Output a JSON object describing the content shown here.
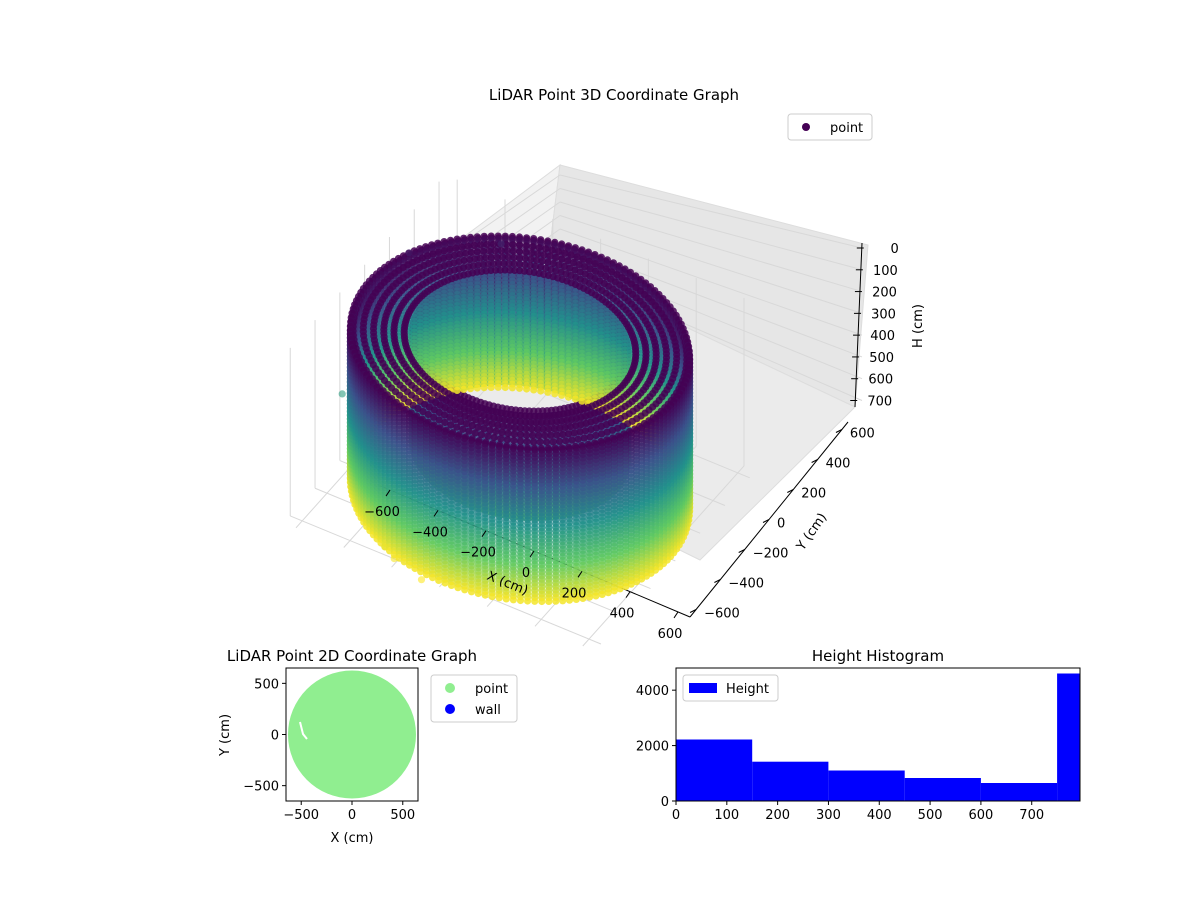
{
  "chart_data": [
    {
      "type": "scatter",
      "projection": "3d",
      "title": "LiDAR Point 3D Coordinate Graph",
      "xlabel": "X (cm)",
      "ylabel": "Y (cm)",
      "zlabel": "H (cm)",
      "xlim": [
        -650,
        650
      ],
      "ylim": [
        -650,
        650
      ],
      "zlim": [
        750,
        0
      ],
      "z_inverted": true,
      "xticks": [
        -600,
        -400,
        -200,
        0,
        200,
        400,
        600
      ],
      "yticks": [
        -600,
        -400,
        -200,
        0,
        200,
        400,
        600
      ],
      "zticks": [
        0,
        100,
        200,
        300,
        400,
        500,
        600,
        700
      ],
      "legend": {
        "placement": "top-right",
        "entries": [
          "point"
        ]
      },
      "colormap": "viridis",
      "series": [
        {
          "name": "point",
          "shape": "cylindrical shell of points",
          "outer_radius": 630,
          "inner_radius": 400,
          "height_range": [
            0,
            750
          ],
          "stray_points": [
            {
              "x": -620,
              "y": 300,
              "h": 60
            },
            {
              "x": -380,
              "y": 580,
              "h": 90
            },
            {
              "x": -640,
              "y": -200,
              "h": 420
            },
            {
              "x": -210,
              "y": -610,
              "h": 740
            },
            {
              "x": -260,
              "y": -590,
              "h": 720
            },
            {
              "x": -80,
              "y": -640,
              "h": 760
            }
          ]
        }
      ],
      "grid": true
    },
    {
      "type": "scatter",
      "title": "LiDAR Point 2D Coordinate Graph",
      "xlabel": "X (cm)",
      "ylabel": "Y (cm)",
      "xlim": [
        -650,
        650
      ],
      "ylim": [
        -650,
        650
      ],
      "xticks": [
        -500,
        0,
        500
      ],
      "yticks": [
        -500,
        0,
        500
      ],
      "legend": {
        "placement": "outside-right",
        "entries": [
          "point",
          "wall"
        ]
      },
      "series": [
        {
          "name": "point",
          "color": "#90ee90",
          "shape": "filled disk",
          "radius": 630
        },
        {
          "name": "wall",
          "color": "#0000ff",
          "points": []
        }
      ]
    },
    {
      "type": "bar",
      "histogram": true,
      "title": "Height Histogram",
      "xlim": [
        0,
        795
      ],
      "ylim": [
        0,
        4800
      ],
      "xticks": [
        0,
        100,
        200,
        300,
        400,
        500,
        600,
        700
      ],
      "yticks": [
        0,
        2000,
        4000
      ],
      "legend": {
        "placement": "top-left",
        "entries": [
          "Height"
        ]
      },
      "series": [
        {
          "name": "Height",
          "color": "#0000ff",
          "bins": [
            {
              "from": 0,
              "to": 150,
              "count": 2220
            },
            {
              "from": 150,
              "to": 300,
              "count": 1420
            },
            {
              "from": 300,
              "to": 450,
              "count": 1100
            },
            {
              "from": 450,
              "to": 600,
              "count": 830
            },
            {
              "from": 600,
              "to": 750,
              "count": 650
            },
            {
              "from": 750,
              "to": 795,
              "count": 4600
            }
          ]
        }
      ]
    }
  ]
}
